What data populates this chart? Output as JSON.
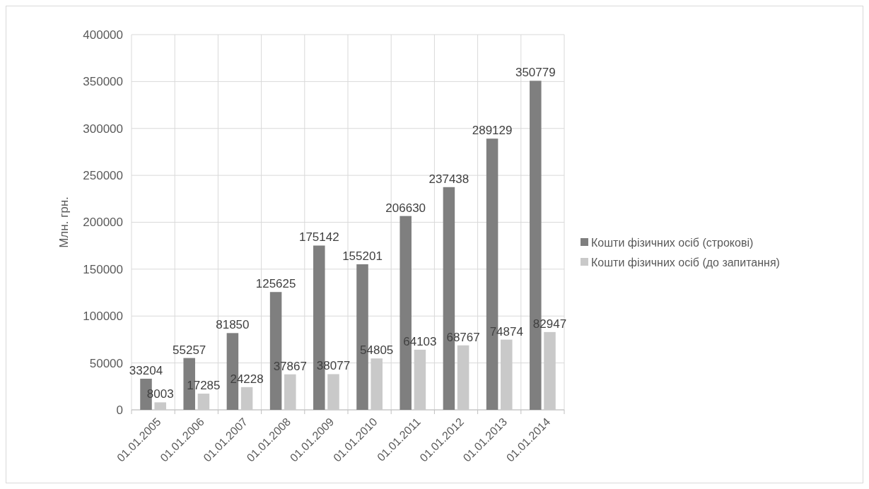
{
  "chart_data": {
    "type": "bar",
    "ylabel": "Млн. грн.",
    "categories": [
      "01.01.2005",
      "01.01.2006",
      "01.01.2007",
      "01.01.2008",
      "01.01.2009",
      "01.01.2010",
      "01.01.2011",
      "01.01.2012",
      "01.01.2013",
      "01.01.2014"
    ],
    "series": [
      {
        "name": "Кошти фізичних осіб (строкові)",
        "color": "#7f7f7f",
        "values": [
          33204,
          55257,
          81850,
          125625,
          175142,
          155201,
          206630,
          237438,
          289129,
          350779
        ]
      },
      {
        "name": "Кошти фізичних осіб (до запитання)",
        "color": "#c9c9c9",
        "values": [
          8003,
          17285,
          24228,
          37867,
          38077,
          54805,
          64103,
          68767,
          74874,
          82947
        ]
      }
    ],
    "ylim": [
      0,
      400000
    ],
    "yticks": [
      0,
      50000,
      100000,
      150000,
      200000,
      250000,
      300000,
      350000,
      400000
    ],
    "grid": true,
    "data_labels": true,
    "legend": "right"
  }
}
